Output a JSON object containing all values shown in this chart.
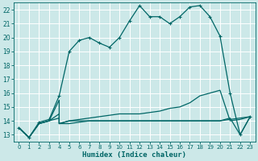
{
  "xlabel": "Humidex (Indice chaleur)",
  "xlim": [
    -0.5,
    23.5
  ],
  "ylim": [
    12.5,
    22.5
  ],
  "yticks": [
    13,
    14,
    15,
    16,
    17,
    18,
    19,
    20,
    21,
    22
  ],
  "xticks": [
    0,
    1,
    2,
    3,
    4,
    5,
    6,
    7,
    8,
    9,
    10,
    11,
    12,
    13,
    14,
    15,
    16,
    17,
    18,
    19,
    20,
    21,
    22,
    23
  ],
  "bg_color": "#cce8e8",
  "grid_color": "#ffffff",
  "line_color": "#006666",
  "curve_main_x": [
    0,
    1,
    2,
    3,
    4,
    5,
    6,
    7,
    8,
    9,
    10,
    11,
    12,
    13,
    14,
    15,
    16,
    17,
    18,
    19,
    20,
    21,
    22,
    23
  ],
  "curve_main_y": [
    13.5,
    12.8,
    13.9,
    14.1,
    15.8,
    19.0,
    19.8,
    20.0,
    19.6,
    19.3,
    20.0,
    21.2,
    22.3,
    21.5,
    21.5,
    21.0,
    21.5,
    22.2,
    22.3,
    21.5,
    20.1,
    16.0,
    13.0,
    14.3
  ],
  "curve_dew_x": [
    0,
    1,
    2,
    3,
    4,
    4,
    5,
    6,
    7,
    8,
    9,
    10,
    11,
    12,
    13,
    14,
    15,
    16,
    17,
    18,
    19,
    20,
    21,
    22,
    23
  ],
  "curve_dew_y": [
    13.5,
    12.8,
    13.8,
    14.0,
    15.5,
    13.8,
    13.8,
    13.9,
    14.0,
    14.0,
    14.0,
    14.0,
    14.0,
    14.0,
    14.0,
    14.0,
    14.0,
    14.0,
    14.0,
    14.0,
    14.0,
    14.0,
    14.1,
    14.2,
    14.3
  ],
  "curve_mid_x": [
    0,
    1,
    2,
    3,
    4,
    4,
    5,
    6,
    7,
    8,
    9,
    10,
    11,
    12,
    13,
    14,
    15,
    16,
    17,
    18,
    19,
    20,
    21,
    22,
    23
  ],
  "curve_mid_y": [
    13.5,
    12.8,
    13.8,
    14.0,
    14.5,
    13.8,
    14.0,
    14.1,
    14.2,
    14.3,
    14.4,
    14.5,
    14.5,
    14.5,
    14.6,
    14.7,
    14.9,
    15.0,
    15.3,
    15.8,
    16.0,
    16.2,
    14.0,
    14.1,
    14.3
  ],
  "curve_flat_x": [
    0,
    1,
    2,
    3,
    4,
    4,
    5,
    6,
    7,
    8,
    9,
    10,
    11,
    12,
    13,
    14,
    15,
    16,
    17,
    18,
    19,
    20,
    21,
    22,
    23
  ],
  "curve_flat_y": [
    13.5,
    12.8,
    13.8,
    14.0,
    14.2,
    13.8,
    14.0,
    14.0,
    14.0,
    14.0,
    14.0,
    14.0,
    14.0,
    14.0,
    14.0,
    14.0,
    14.0,
    14.0,
    14.0,
    14.0,
    14.0,
    14.0,
    14.2,
    13.0,
    14.3
  ]
}
